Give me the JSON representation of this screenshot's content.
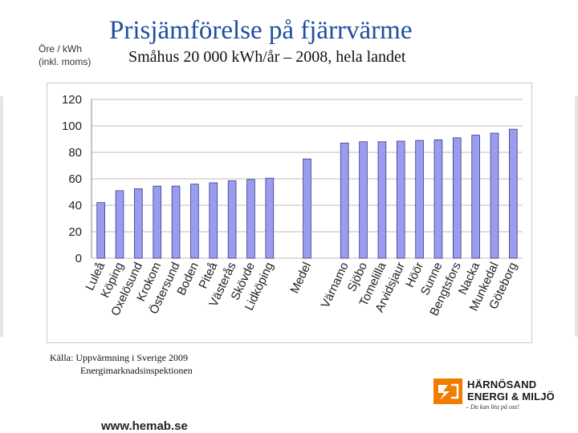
{
  "header": {
    "unit_line1": "Öre / kWh",
    "unit_line2": "(inkl. moms)",
    "title": "Prisjämförelse på fjärrvärme",
    "subtitle": "Småhus 20 000 kWh/år – 2008, hela landet"
  },
  "source": {
    "line1": "Källa: Uppvärmning i Sverige 2009",
    "line2": "Energimarknadsinspektionen"
  },
  "footer": {
    "url": "www.hemab.se",
    "logo_line1": "HÄRNÖSAND",
    "logo_line2": "ENERGI & MILJÖ",
    "logo_tagline": "– Du kan lita på oss!"
  },
  "colors": {
    "bar_fill": "#9a9cf0",
    "bar_stroke": "#3a3a8a",
    "grid": "#bdbdbd",
    "title": "#1f4fa0",
    "logo_orange": "#f07c00"
  },
  "chart_data": {
    "type": "bar",
    "title": "",
    "xlabel": "",
    "ylabel": "Öre / kWh",
    "ylim": [
      0,
      120
    ],
    "yticks": [
      0,
      20,
      40,
      60,
      80,
      100,
      120
    ],
    "grid": true,
    "legend": "none",
    "categories": [
      "Luleå",
      "Köping",
      "Oxelösund",
      "Krokom",
      "Östersund",
      "Boden",
      "Piteå",
      "Västerås",
      "Skövde",
      "Lidköping",
      "",
      "Medel",
      "",
      "Värnamo",
      "Sjöbo",
      "Tomelilla",
      "Arvidsjaur",
      "Höör",
      "Sunne",
      "Bengtsfors",
      "Nacka",
      "Munkedal",
      "Göteborg"
    ],
    "values": [
      42,
      51,
      52.5,
      54.5,
      54.5,
      56,
      57,
      58.5,
      59.5,
      60.5,
      null,
      75,
      null,
      87,
      88,
      88,
      88.5,
      89,
      89.5,
      91,
      93,
      94.5,
      97.5
    ]
  }
}
